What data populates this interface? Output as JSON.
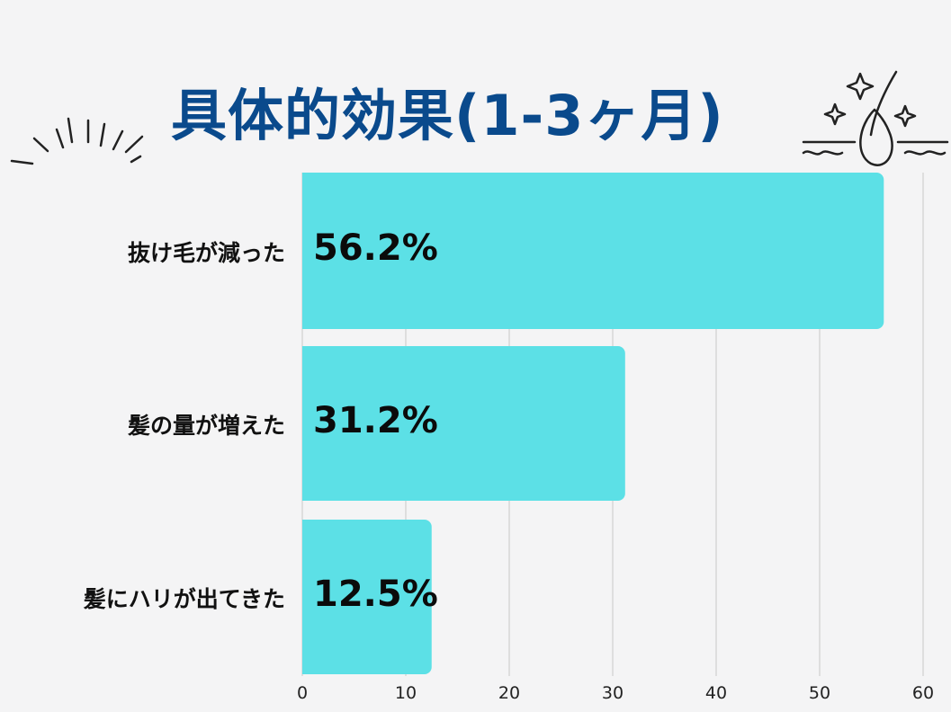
{
  "header": {
    "title": "具体的効果(1-3ヶ月)"
  },
  "colors": {
    "bar": "#5ce0e6",
    "title": "#0a4a8c",
    "grid": "#d6d6d6"
  },
  "icons": {
    "left": "radiating-lines-icon",
    "right": "hair-follicle-sparkle-icon"
  },
  "chart_data": {
    "type": "bar",
    "orientation": "horizontal",
    "title": "具体的効果(1-3ヶ月)",
    "categories": [
      "抜け毛が減った",
      "髪の量が増えた",
      "髪にハリが出てきた"
    ],
    "values": [
      56.2,
      31.2,
      12.5
    ],
    "value_labels": [
      "56.2%",
      "31.2%",
      "12.5%"
    ],
    "xlim": [
      0,
      60
    ],
    "xticks": [
      "0",
      "10",
      "20",
      "30",
      "40",
      "50",
      "60"
    ],
    "grid": true,
    "xlabel": "",
    "ylabel": ""
  }
}
